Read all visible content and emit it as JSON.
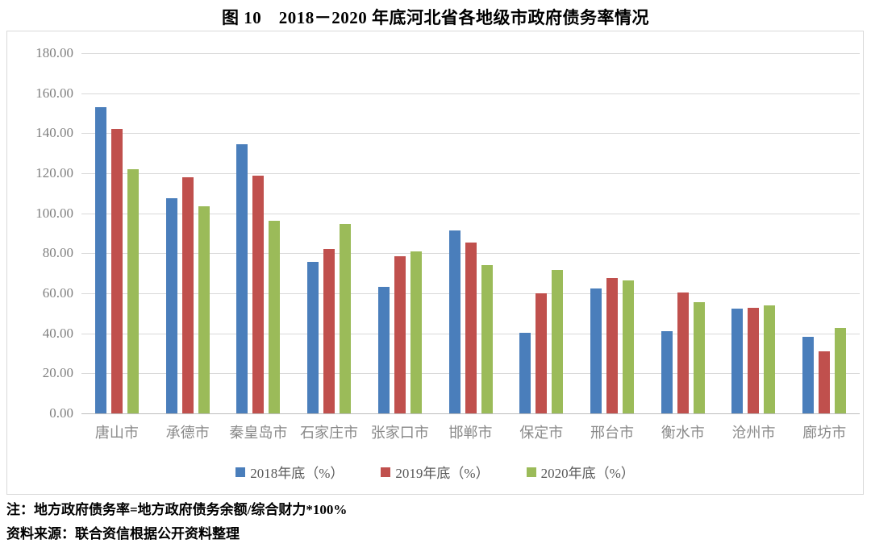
{
  "title": "图 10　2018－2020 年底河北省各地级市政府债务率情况",
  "chart_data": {
    "type": "bar",
    "title": "图 10　2018－2020 年底河北省各地级市政府债务率情况",
    "categories": [
      "唐山市",
      "承德市",
      "秦皇岛市",
      "石家庄市",
      "张家口市",
      "邯郸市",
      "保定市",
      "邢台市",
      "衡水市",
      "沧州市",
      "廊坊市"
    ],
    "series": [
      {
        "name": "2018年底（%）",
        "color": "#4A7EBB",
        "values": [
          152.9,
          107.6,
          134.4,
          75.6,
          63.1,
          91.4,
          40.1,
          62.4,
          41.2,
          52.4,
          38.2
        ]
      },
      {
        "name": "2019年底（%）",
        "color": "#C0504D",
        "values": [
          142.1,
          117.8,
          118.7,
          82.2,
          78.6,
          85.3,
          60.0,
          67.8,
          60.3,
          52.7,
          31.0
        ]
      },
      {
        "name": "2020年底（%）",
        "color": "#9BBB59",
        "values": [
          122.1,
          103.3,
          96.3,
          94.5,
          81.0,
          74.1,
          71.5,
          66.4,
          55.7,
          54.0,
          42.6
        ]
      }
    ],
    "ylim": [
      0,
      180
    ],
    "ytick_labels": [
      "180.00",
      "160.00",
      "140.00",
      "120.00",
      "100.00",
      "80.00",
      "60.00",
      "40.00",
      "20.00",
      "0.00"
    ],
    "xlabel": "",
    "ylabel": "",
    "grid": true,
    "legend_position": "bottom"
  },
  "notes": {
    "note": "注：地方政府债务率=地方政府债务余额/综合财力*100%",
    "source": "资料来源：联合资信根据公开资料整理"
  }
}
